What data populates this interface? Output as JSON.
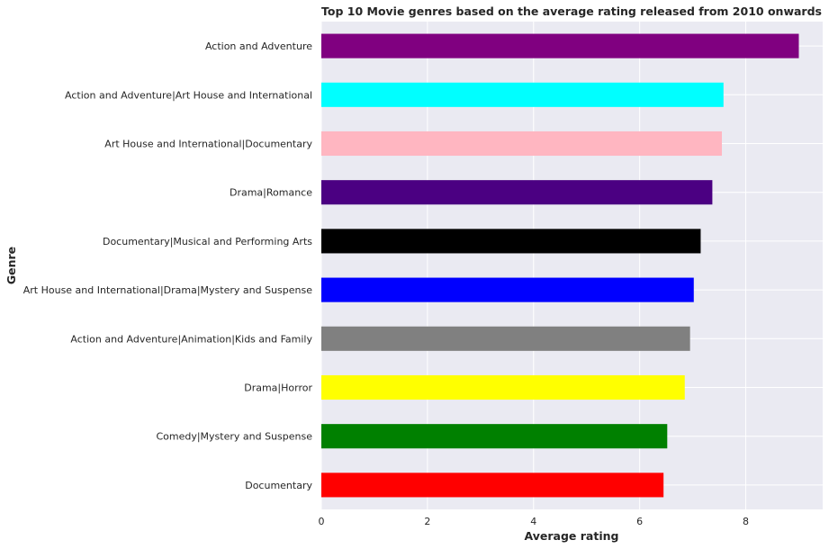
{
  "chart_data": {
    "type": "bar",
    "orientation": "horizontal",
    "title": "Top 10 Movie genres based on the average rating released from 2010 onwards",
    "xlabel": "Average rating",
    "ylabel": "Genre",
    "xlim": [
      0,
      9.45
    ],
    "xticks": [
      0,
      2,
      4,
      6,
      8
    ],
    "grid": true,
    "categories": [
      "Action and Adventure",
      "Action and Adventure|Art House and International",
      "Art House and International|Documentary",
      "Drama|Romance",
      "Documentary|Musical and Performing Arts",
      "Art House and International|Drama|Mystery and Suspense",
      "Action and Adventure|Animation|Kids and Family",
      "Drama|Horror",
      "Comedy|Mystery and Suspense",
      "Documentary"
    ],
    "values": [
      9.0,
      7.58,
      7.55,
      7.37,
      7.15,
      7.02,
      6.95,
      6.85,
      6.52,
      6.45
    ],
    "colors": [
      "#800080",
      "#00ffff",
      "#ffb6c1",
      "#4b0082",
      "#000000",
      "#0000ff",
      "#808080",
      "#ffff00",
      "#008000",
      "#ff0000"
    ]
  },
  "theme": {
    "plot_background": "#eaeaf2",
    "grid_color": "#ffffff",
    "text_color": "#262626"
  }
}
